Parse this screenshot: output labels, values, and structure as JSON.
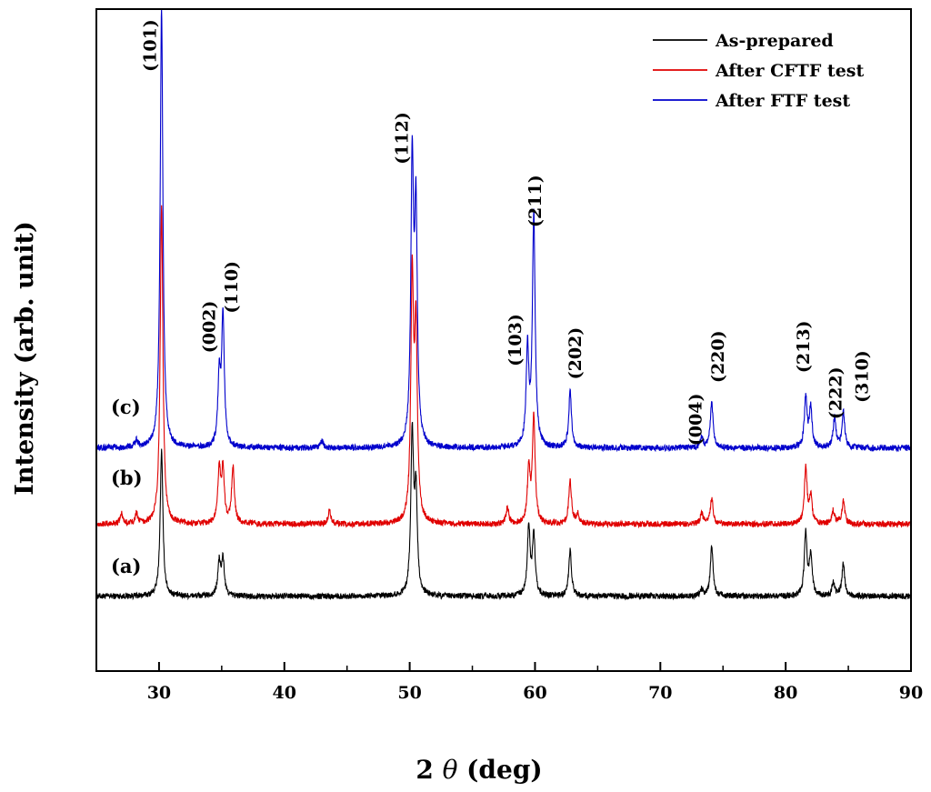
{
  "chart_data": {
    "type": "line",
    "xlabel_prefix": "2 ",
    "xlabel_symbol": "θ",
    "xlabel_suffix": " (deg)",
    "ylabel": "Intensity (arb. unit)",
    "xlim": [
      25,
      90
    ],
    "ylim": [
      0,
      100
    ],
    "xticks": [
      30,
      40,
      50,
      60,
      70,
      80,
      90
    ],
    "legend": {
      "position": "top-right"
    },
    "series": [
      {
        "name": "As-prepared",
        "tag": "(a)",
        "color": "#000000",
        "baseline": 11.3,
        "peaks": [
          {
            "x": 30.2,
            "h": 22.0
          },
          {
            "x": 34.8,
            "h": 5.0
          },
          {
            "x": 35.1,
            "h": 5.5
          },
          {
            "x": 50.2,
            "h": 24.0
          },
          {
            "x": 50.5,
            "h": 15.0
          },
          {
            "x": 59.5,
            "h": 10.5
          },
          {
            "x": 59.9,
            "h": 9.0
          },
          {
            "x": 62.8,
            "h": 7.0
          },
          {
            "x": 73.3,
            "h": 1.0
          },
          {
            "x": 74.1,
            "h": 7.5
          },
          {
            "x": 81.6,
            "h": 9.5
          },
          {
            "x": 82.0,
            "h": 6.0
          },
          {
            "x": 83.8,
            "h": 2.0
          },
          {
            "x": 84.6,
            "h": 5.0
          }
        ]
      },
      {
        "name": "After CFTF test",
        "tag": "(b)",
        "color": "#e00000",
        "baseline": 22.2,
        "peaks": [
          {
            "x": 27.0,
            "h": 1.5
          },
          {
            "x": 28.2,
            "h": 1.5
          },
          {
            "x": 30.2,
            "h": 48.0
          },
          {
            "x": 34.8,
            "h": 8.0
          },
          {
            "x": 35.1,
            "h": 8.0
          },
          {
            "x": 35.9,
            "h": 8.5
          },
          {
            "x": 43.6,
            "h": 2.0
          },
          {
            "x": 50.2,
            "h": 36.0
          },
          {
            "x": 50.5,
            "h": 28.0
          },
          {
            "x": 57.8,
            "h": 2.5
          },
          {
            "x": 59.5,
            "h": 8.0
          },
          {
            "x": 59.9,
            "h": 16.0
          },
          {
            "x": 62.8,
            "h": 6.5
          },
          {
            "x": 63.4,
            "h": 1.5
          },
          {
            "x": 73.3,
            "h": 1.5
          },
          {
            "x": 74.1,
            "h": 4.0
          },
          {
            "x": 81.6,
            "h": 8.5
          },
          {
            "x": 82.0,
            "h": 4.0
          },
          {
            "x": 83.8,
            "h": 2.0
          },
          {
            "x": 84.6,
            "h": 3.5
          }
        ]
      },
      {
        "name": "After FTF test",
        "tag": "(c)",
        "color": "#0000cc",
        "baseline": 33.7,
        "peaks": [
          {
            "x": 28.2,
            "h": 1.0
          },
          {
            "x": 30.2,
            "h": 66.3
          },
          {
            "x": 34.8,
            "h": 10.0
          },
          {
            "x": 35.1,
            "h": 19.5
          },
          {
            "x": 43.0,
            "h": 1.0
          },
          {
            "x": 50.2,
            "h": 42.0
          },
          {
            "x": 50.5,
            "h": 34.0
          },
          {
            "x": 59.4,
            "h": 14.5
          },
          {
            "x": 59.9,
            "h": 35.0
          },
          {
            "x": 62.8,
            "h": 8.5
          },
          {
            "x": 73.3,
            "h": 1.5
          },
          {
            "x": 74.1,
            "h": 7.0
          },
          {
            "x": 81.6,
            "h": 7.5
          },
          {
            "x": 82.0,
            "h": 6.0
          },
          {
            "x": 83.9,
            "h": 4.5
          },
          {
            "x": 84.6,
            "h": 5.5
          }
        ]
      }
    ],
    "annotations": [
      {
        "label": "(101)",
        "x": 29.4,
        "y": 94.5
      },
      {
        "label": "(002)",
        "x": 34.1,
        "y": 52.0
      },
      {
        "label": "(110)",
        "x": 35.9,
        "y": 58.0
      },
      {
        "label": "(112)",
        "x": 49.5,
        "y": 80.5
      },
      {
        "label": "(103)",
        "x": 58.5,
        "y": 50.0
      },
      {
        "label": "(211)",
        "x": 60.1,
        "y": 71.0
      },
      {
        "label": "(202)",
        "x": 63.3,
        "y": 48.0
      },
      {
        "label": "(004)",
        "x": 72.9,
        "y": 38.0
      },
      {
        "label": "(220)",
        "x": 74.7,
        "y": 47.5
      },
      {
        "label": "(213)",
        "x": 81.5,
        "y": 49.0
      },
      {
        "label": "(222)",
        "x": 84.1,
        "y": 42.0
      },
      {
        "label": "(310)",
        "x": 86.2,
        "y": 44.5
      }
    ]
  }
}
